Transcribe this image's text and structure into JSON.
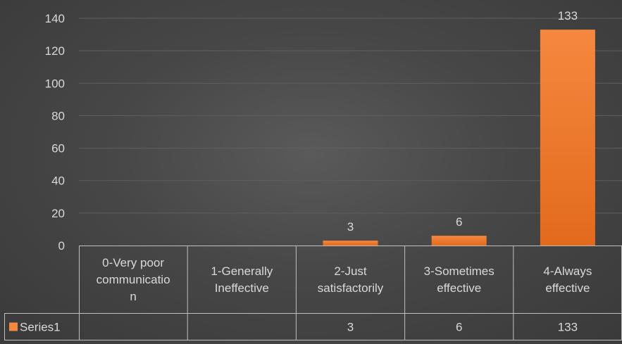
{
  "chart_data": {
    "type": "bar",
    "title": "",
    "xlabel": "",
    "ylabel": "",
    "categories": [
      [
        "0-Very poor",
        "communicatio",
        "n"
      ],
      [
        "1-Generally",
        "Ineffective"
      ],
      [
        "2-Just",
        "satisfactorily"
      ],
      [
        "3-Sometimes",
        "effective"
      ],
      [
        "4-Always",
        "effective"
      ]
    ],
    "series": [
      {
        "name": "Series1",
        "values": [
          null,
          null,
          3,
          6,
          133
        ]
      }
    ],
    "data_labels": [
      "",
      "",
      "3",
      "6",
      "133"
    ],
    "yticks": [
      0,
      20,
      40,
      60,
      80,
      100,
      120,
      140
    ],
    "ylim": [
      0,
      140
    ],
    "grid": true,
    "data_table": true,
    "legend": "data-table-left"
  },
  "colors": {
    "bar_top": "#f5883f",
    "bar_bottom": "#e36a1c",
    "grid": "#5f5f5f",
    "table_border": "#bfbfbf",
    "text": "#d9d9d9"
  }
}
